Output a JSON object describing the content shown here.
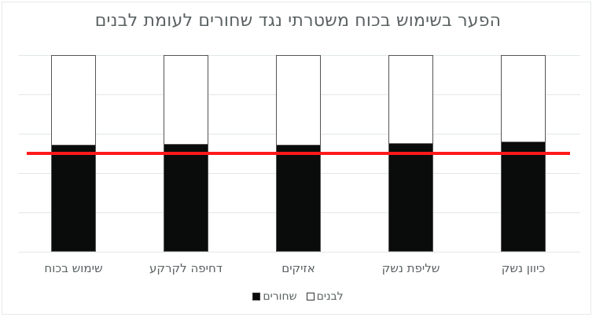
{
  "chart_data": {
    "type": "bar",
    "stacked": true,
    "percent_stacked": true,
    "title": "הפער בשימוש בכוח משטרתי נגד שחורים לעומת לבנים",
    "categories": [
      "שימוש בכוח",
      "דחיפה לקרקע",
      "אזיקים",
      "שליפת נשק",
      "כיוון נשק"
    ],
    "series": [
      {
        "name": "שחורים",
        "color": "#0a0b0b",
        "values": [
          54.5,
          55,
          54.5,
          55.2,
          56
        ]
      },
      {
        "name": "לבנים",
        "color": "#ffffff",
        "values": [
          45.5,
          45,
          45.5,
          44.8,
          44
        ]
      }
    ],
    "reference_line": {
      "value": 50,
      "color": "#ff1a1a"
    },
    "xlabel": "",
    "ylabel": "",
    "ylim": [
      0,
      100
    ],
    "grid": true,
    "gridlines": 6,
    "axis_tick_labels_visible": false,
    "legend_position": "bottom"
  },
  "legend": {
    "white_label": "לבנים",
    "black_label": "שחורים"
  }
}
